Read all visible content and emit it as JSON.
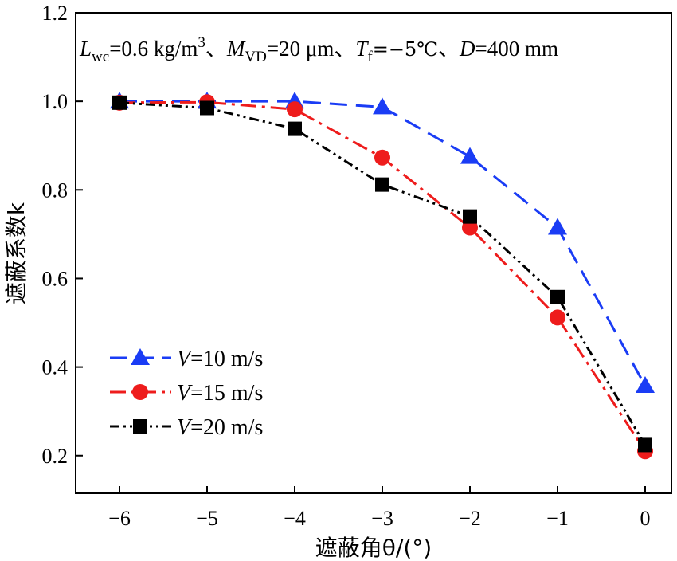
{
  "chart_data": {
    "type": "line",
    "title": "",
    "annotation": {
      "lwc_symbol": "L",
      "lwc_sub": "wc",
      "lwc_value": "=0.6 kg/m",
      "lwc_exp": "3",
      "sep1": "、",
      "mvd_symbol": "M",
      "mvd_sub": "VD",
      "mvd_value": "=20 μm",
      "sep2": "、",
      "tf_symbol": "T",
      "tf_sub": "f",
      "tf_value": "=−5℃",
      "sep3": "、",
      "d_symbol": "D",
      "d_value": "=400 mm"
    },
    "xlabel": "遮蔽角θ/(°)",
    "ylabel": "遮蔽系数k",
    "xlim": [
      -6.5,
      0.3
    ],
    "ylim": [
      0.115,
      1.2
    ],
    "x_ticks": [
      -6,
      -5,
      -4,
      -3,
      -2,
      -1,
      0
    ],
    "x_tick_labels": [
      "−6",
      "−5",
      "−4",
      "−3",
      "−2",
      "−1",
      "0"
    ],
    "y_ticks": [
      0.2,
      0.4,
      0.6,
      0.8,
      1.0,
      1.2
    ],
    "y_tick_labels": [
      "0.2",
      "0.4",
      "0.6",
      "0.8",
      "1.0",
      "1.2"
    ],
    "x": [
      -6,
      -5,
      -4,
      -3,
      -2,
      -1,
      0
    ],
    "series": [
      {
        "name": "V=10 m/s",
        "name_symbol": "V",
        "name_rest": "=10 m/s",
        "values": [
          1.0,
          1.0,
          1.0,
          0.987,
          0.875,
          0.715,
          0.358
        ],
        "color": "#1a3cf5",
        "marker": "triangle",
        "dash": "dashed"
      },
      {
        "name": "V=15 m/s",
        "name_symbol": "V",
        "name_rest": "=15 m/s",
        "values": [
          0.997,
          0.998,
          0.982,
          0.873,
          0.715,
          0.512,
          0.21
        ],
        "color": "#ee1c1c",
        "marker": "circle",
        "dash": "dashdot"
      },
      {
        "name": "V=20 m/s",
        "name_symbol": "V",
        "name_rest": "=20 m/s",
        "values": [
          0.997,
          0.985,
          0.938,
          0.812,
          0.74,
          0.558,
          0.224
        ],
        "color": "#000000",
        "marker": "square",
        "dash": "dashdotdot"
      }
    ],
    "grid": false,
    "legend_position": "bottom-left"
  }
}
